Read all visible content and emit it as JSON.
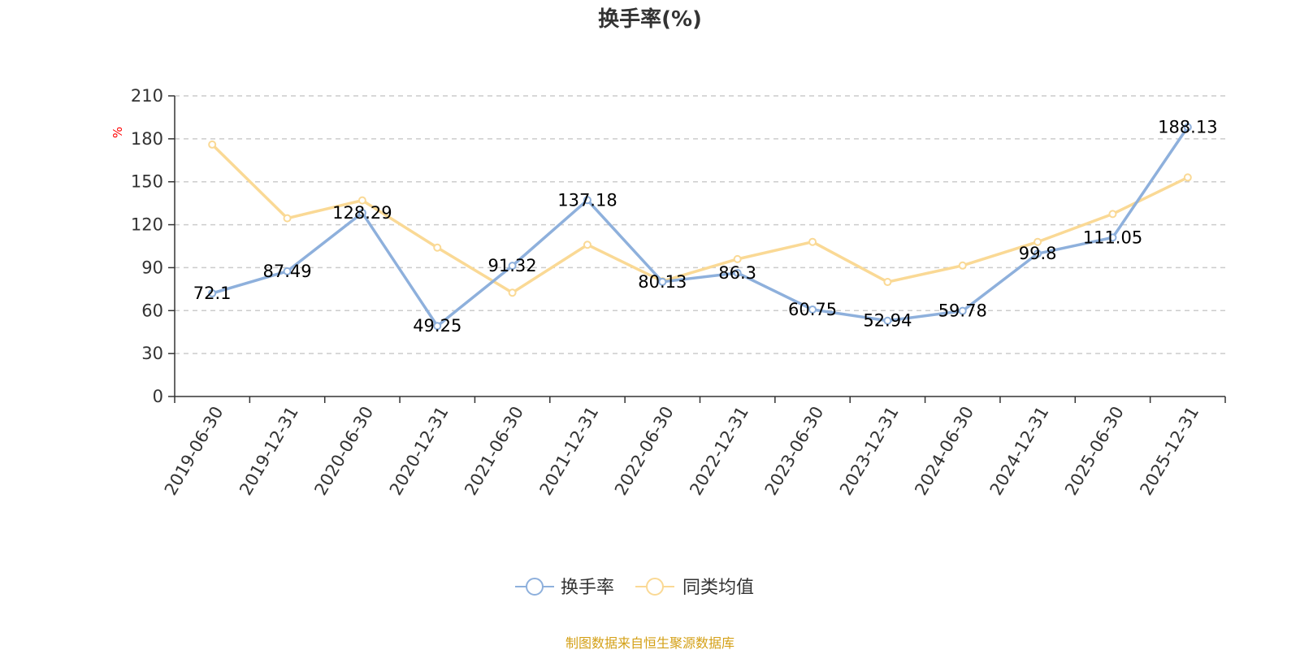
{
  "chart_data": {
    "type": "line",
    "title": "换手率(%)",
    "ylabel": "%",
    "xlabel": "",
    "ylim": [
      0,
      210
    ],
    "yticks": [
      0,
      30,
      60,
      90,
      120,
      150,
      180,
      210
    ],
    "grid": true,
    "legend_position": "bottom-center",
    "categories": [
      "2019-06-30",
      "2019-12-31",
      "2020-06-30",
      "2020-12-31",
      "2021-06-30",
      "2021-12-31",
      "2022-06-30",
      "2022-12-31",
      "2023-06-30",
      "2023-12-31",
      "2024-06-30",
      "2024-12-31",
      "2025-06-30",
      "2025-12-31"
    ],
    "series": [
      {
        "name": "换手率",
        "color": "#8eb0dc",
        "values": [
          72.1,
          87.49,
          128.29,
          49.25,
          91.32,
          137.18,
          80.13,
          86.3,
          60.75,
          52.94,
          59.78,
          99.8,
          111.05,
          188.13
        ],
        "labels": [
          "72.1",
          "87.49",
          "128.29",
          "49.25",
          "91.32",
          "137.18",
          "80.13",
          "86.3",
          "60.75",
          "52.94",
          "59.78",
          "99.8",
          "111.05",
          "188.13"
        ]
      },
      {
        "name": "同类均值",
        "color": "#fad995",
        "values": [
          176,
          124.5,
          137,
          104,
          72.5,
          106,
          80.5,
          96,
          108,
          80,
          91.5,
          108,
          127.5,
          153
        ]
      }
    ]
  },
  "source_note": "制图数据来自恒生聚源数据库",
  "colors": {
    "axis": "#333333",
    "grid": "#cccccc",
    "unit": "#ff0000",
    "source": "#d4a017"
  }
}
